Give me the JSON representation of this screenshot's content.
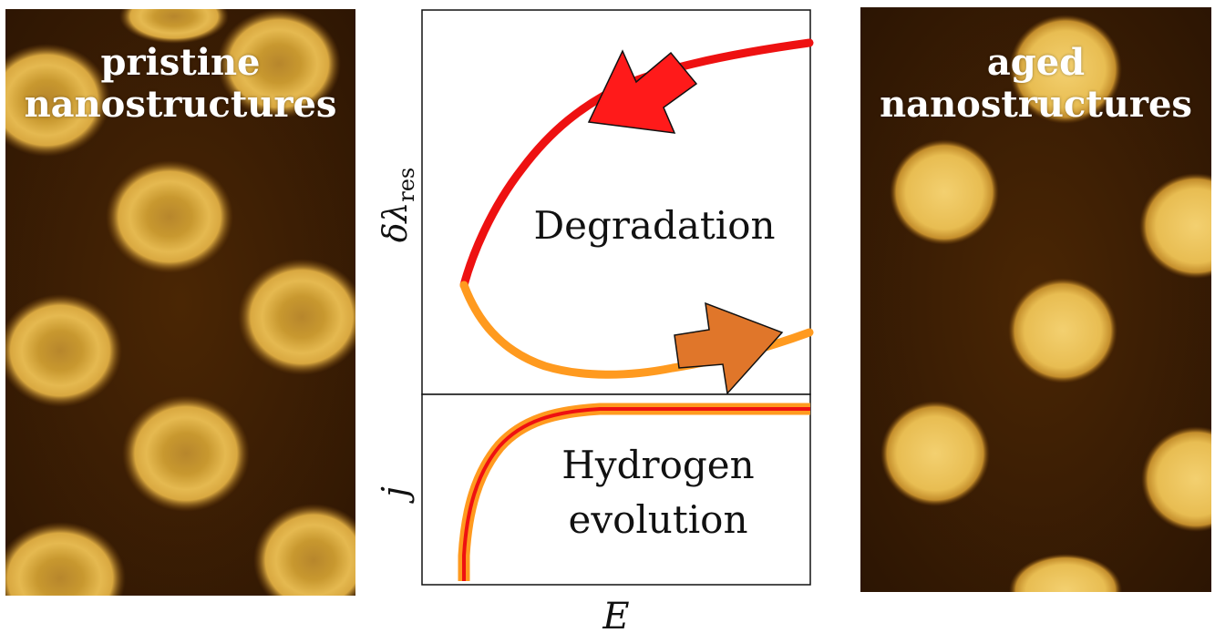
{
  "left_panel": {
    "label_line1": "pristine",
    "label_line2": "nanostructures"
  },
  "right_panel": {
    "label_line1": "aged",
    "label_line2": "nanostructures"
  },
  "plot": {
    "top_region_label": "Degradation",
    "bottom_region_label_line1": "Hydrogen",
    "bottom_region_label_line2": "evolution",
    "top_ylabel_symbol": "δλ",
    "top_ylabel_subscript": "res",
    "bottom_ylabel": "j",
    "xlabel": "E",
    "colors": {
      "forward_sweep": "#ff9a1f",
      "backward_sweep": "#ee1111",
      "arrow_backward": "#ff1a1a",
      "arrow_forward": "#e0762a"
    }
  },
  "colors": {
    "afm_background": "#3a1d04",
    "afm_particle": "#e2b349"
  }
}
